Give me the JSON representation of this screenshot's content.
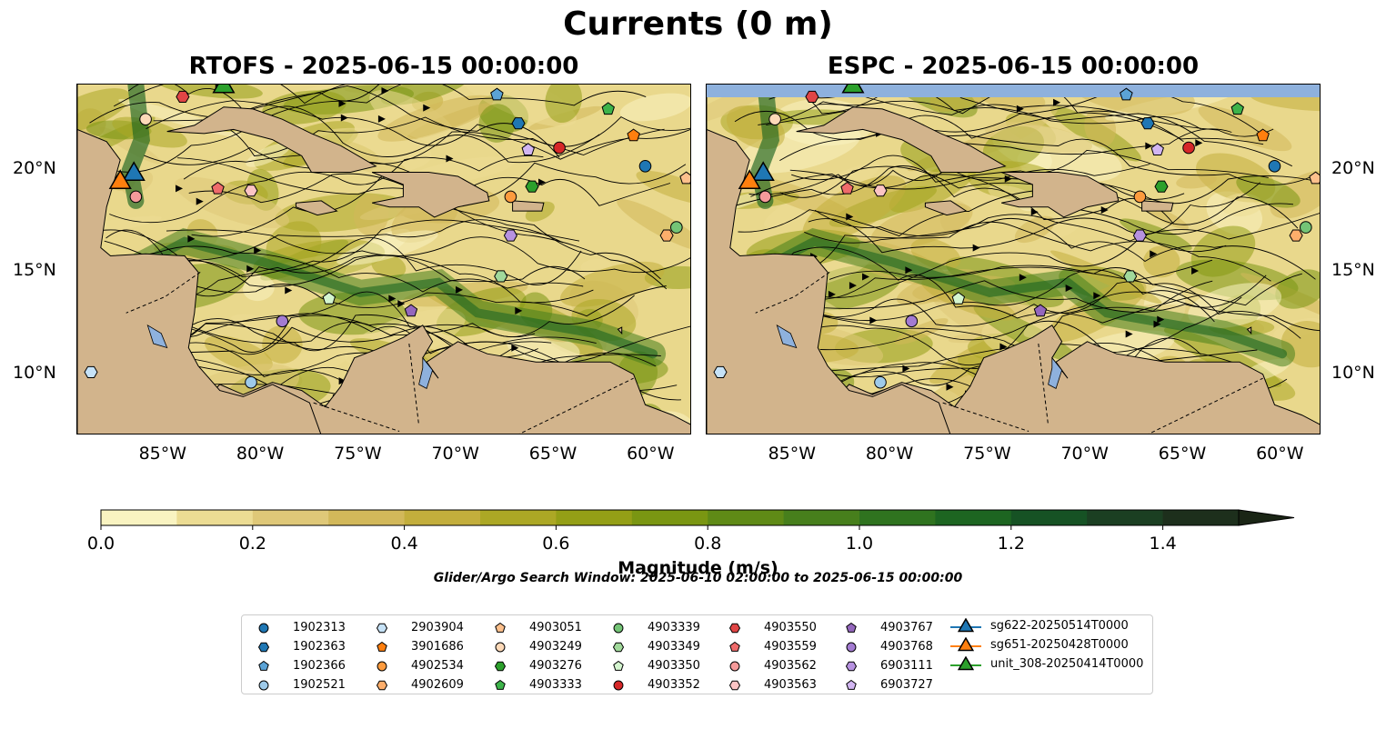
{
  "title": "Currents (0 m)",
  "chart_data": [
    {
      "type": "heatmap",
      "title": "RTOFS - 2025-06-15 00:00:00",
      "xlim": [
        -89.5,
        -58
      ],
      "ylim": [
        7,
        24.2
      ],
      "x_ticks": [
        "85°W",
        "80°W",
        "75°W",
        "70°W",
        "65°W",
        "60°W"
      ],
      "y_ticks": [
        "10°N",
        "15°N",
        "20°N"
      ],
      "markers": [
        {
          "id": "1902313",
          "lon": -60.4,
          "lat": 20.2
        },
        {
          "id": "1902363",
          "lon": -66.9,
          "lat": 22.3
        },
        {
          "id": "1902366",
          "lon": -68.0,
          "lat": 23.7
        },
        {
          "id": "1902521",
          "lon": -80.6,
          "lat": 9.6
        },
        {
          "id": "2903904",
          "lon": -88.8,
          "lat": 10.1
        },
        {
          "id": "3901686",
          "lon": -61.0,
          "lat": 21.7
        },
        {
          "id": "4902534",
          "lon": -67.3,
          "lat": 18.7
        },
        {
          "id": "4902609",
          "lon": -59.3,
          "lat": 16.8
        },
        {
          "id": "4903051",
          "lon": -58.3,
          "lat": 19.6
        },
        {
          "id": "4903249",
          "lon": -86.0,
          "lat": 22.5
        },
        {
          "id": "4903276",
          "lon": -66.2,
          "lat": 19.2
        },
        {
          "id": "4903333",
          "lon": -62.3,
          "lat": 23.0
        },
        {
          "id": "4903339",
          "lon": -58.8,
          "lat": 17.2
        },
        {
          "id": "4903349",
          "lon": -67.8,
          "lat": 14.8
        },
        {
          "id": "4903350",
          "lon": -76.6,
          "lat": 13.7
        },
        {
          "id": "4903352",
          "lon": -64.8,
          "lat": 21.1
        },
        {
          "id": "4903550",
          "lon": -84.1,
          "lat": 23.6
        },
        {
          "id": "4903559",
          "lon": -82.3,
          "lat": 19.1
        },
        {
          "id": "4903562",
          "lon": -86.5,
          "lat": 18.7
        },
        {
          "id": "4903563",
          "lon": -80.6,
          "lat": 19.0
        },
        {
          "id": "4903767",
          "lon": -72.4,
          "lat": 13.1
        },
        {
          "id": "4903768",
          "lon": -79.0,
          "lat": 12.6
        },
        {
          "id": "6903111",
          "lon": -67.3,
          "lat": 16.8
        },
        {
          "id": "6903727",
          "lon": -66.4,
          "lat": 21.0
        }
      ],
      "tracks": [
        {
          "id": "sg622-20250514T0000",
          "lon": -86.6,
          "lat": 19.8
        },
        {
          "id": "sg651-20250428T0000",
          "lon": -87.3,
          "lat": 19.4
        },
        {
          "id": "unit_308-20250414T0000",
          "lon": -82.0,
          "lat": 24.1
        }
      ]
    },
    {
      "type": "heatmap",
      "title": "ESPC - 2025-06-15 00:00:00",
      "xlim": [
        -89.5,
        -58
      ],
      "ylim": [
        7,
        24.2
      ],
      "x_ticks": [
        "85°W",
        "80°W",
        "75°W",
        "70°W",
        "65°W",
        "60°W"
      ],
      "y_ticks": [
        "10°N",
        "15°N",
        "20°N"
      ]
    }
  ],
  "colorbar": {
    "label": "Magnitude (m/s)",
    "ticks": [
      "0.0",
      "0.2",
      "0.4",
      "0.6",
      "0.8",
      "1.0",
      "1.2",
      "1.4"
    ],
    "levels": [
      0,
      0.1,
      0.2,
      0.3,
      0.4,
      0.5,
      0.6,
      0.7,
      0.8,
      0.9,
      1.0,
      1.1,
      1.2,
      1.3,
      1.4,
      1.5
    ],
    "colors": [
      "#f9f3c1",
      "#ecdc93",
      "#dfc878",
      "#d2b85a",
      "#c3ae3c",
      "#aca825",
      "#949f16",
      "#7a9612",
      "#5f8a16",
      "#477f1c",
      "#2f731f",
      "#1d6521",
      "#165224",
      "#1b3f22",
      "#1d2f1c"
    ]
  },
  "search_window": "Glider/Argo Search Window: 2025-06-10 02:00:00 to 2025-06-15 00:00:00",
  "legend": [
    {
      "label": "1902313",
      "shape": "circle",
      "color": "#1f77b4"
    },
    {
      "label": "1902363",
      "shape": "hexagon",
      "color": "#1f77b4"
    },
    {
      "label": "1902366",
      "shape": "pentagon",
      "color": "#5ba3d6"
    },
    {
      "label": "1902521",
      "shape": "circle",
      "color": "#9ecae9"
    },
    {
      "label": "2903904",
      "shape": "hexagon",
      "color": "#c6e2f7"
    },
    {
      "label": "3901686",
      "shape": "pentagon",
      "color": "#ff7f0e"
    },
    {
      "label": "4902534",
      "shape": "circle",
      "color": "#fd9b3e"
    },
    {
      "label": "4902609",
      "shape": "hexagon",
      "color": "#fdae6b"
    },
    {
      "label": "4903051",
      "shape": "pentagon",
      "color": "#fdc08c"
    },
    {
      "label": "4903249",
      "shape": "circle",
      "color": "#fdd9b8"
    },
    {
      "label": "4903276",
      "shape": "hexagon",
      "color": "#2ca02c"
    },
    {
      "label": "4903333",
      "shape": "pentagon",
      "color": "#3db34a"
    },
    {
      "label": "4903339",
      "shape": "circle",
      "color": "#74c476"
    },
    {
      "label": "4903349",
      "shape": "hexagon",
      "color": "#a1d99b"
    },
    {
      "label": "4903350",
      "shape": "pentagon",
      "color": "#d4f5cf"
    },
    {
      "label": "4903352",
      "shape": "circle",
      "color": "#d62728"
    },
    {
      "label": "4903550",
      "shape": "hexagon",
      "color": "#e04545"
    },
    {
      "label": "4903559",
      "shape": "pentagon",
      "color": "#ef6b6b"
    },
    {
      "label": "4903562",
      "shape": "circle",
      "color": "#f59a9a"
    },
    {
      "label": "4903563",
      "shape": "hexagon",
      "color": "#fbc4c4"
    },
    {
      "label": "4903767",
      "shape": "pentagon",
      "color": "#9467bd"
    },
    {
      "label": "4903768",
      "shape": "circle",
      "color": "#a37bd1"
    },
    {
      "label": "6903111",
      "shape": "hexagon",
      "color": "#b792e0"
    },
    {
      "label": "6903727",
      "shape": "pentagon",
      "color": "#d2b6f2"
    },
    {
      "label": "sg622-20250514T0000",
      "shape": "triangle",
      "color": "#1f77b4"
    },
    {
      "label": "sg651-20250428T0000",
      "shape": "triangle",
      "color": "#ff7f0e"
    },
    {
      "label": "unit_308-20250414T0000",
      "shape": "triangle",
      "color": "#2ca02c"
    }
  ]
}
